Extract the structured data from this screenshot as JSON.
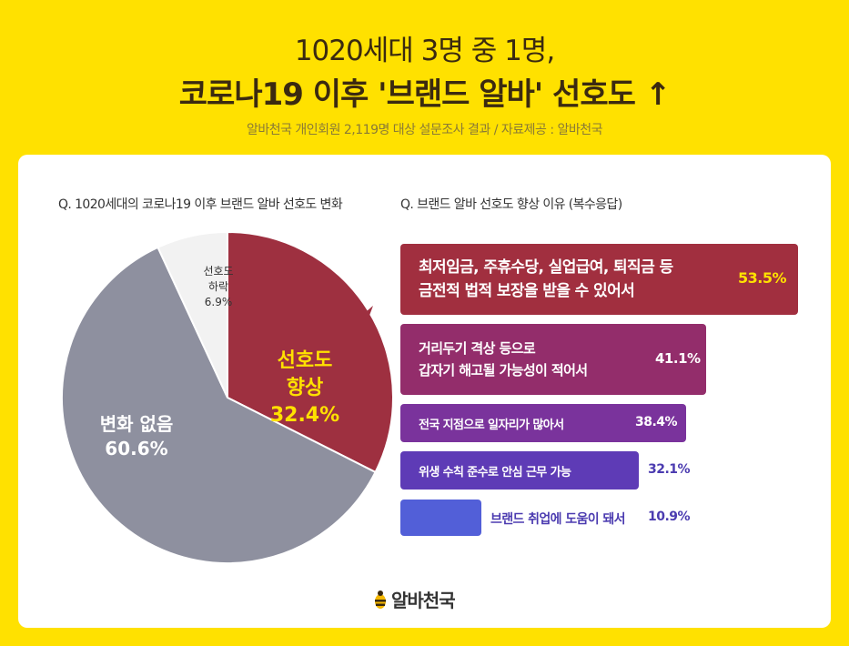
{
  "header": {
    "line1": "1020세대 3명 중 1명,",
    "line2": "코로나19 이후 '브랜드 알바' 선호도 ↑",
    "source": "알바천국 개인회원 2,119명 대상 설문조사 결과 / 자료제공 : 알바천국"
  },
  "colors": {
    "background": "#FFE100",
    "pie_no_change": "#8E909F",
    "pie_decrease": "#F2F2F2",
    "pie_increase": "#9E3040",
    "highlight_text": "#FFE100"
  },
  "chart_data": [
    {
      "type": "pie",
      "title": "Q. 1020세대의 코로나19 이후 브랜드 알바 선호도 변화",
      "slices": [
        {
          "label": "선호도 향상",
          "label_lines": [
            "선호도",
            "향상"
          ],
          "value": 32.4,
          "display": "32.4%",
          "color": "#9E3040"
        },
        {
          "label": "변화 없음",
          "label_lines": [
            "변화 없음"
          ],
          "value": 60.6,
          "display": "60.6%",
          "color": "#8E909F"
        },
        {
          "label": "선호도 하락",
          "label_lines": [
            "선호도",
            "하락"
          ],
          "value": 6.9,
          "display": "6.9%",
          "color": "#F2F2F2"
        }
      ]
    },
    {
      "type": "bar",
      "orientation": "horizontal",
      "title": "Q. 브랜드 알바 선호도 향상 이유 (복수응답)",
      "categories": [
        "최저임금, 주휴수당, 실업급여, 퇴직금 등\n금전적 법적 보장을 받을 수 있어서",
        "거리두기 격상 등으로\n갑자기 해고될 가능성이 적어서",
        "전국 지점으로 일자리가 많아서",
        "위생 수칙 준수로 안심 근무 가능",
        "브랜드 취업에 도움이 돼서"
      ],
      "values": [
        53.5,
        41.1,
        38.4,
        32.1,
        10.9
      ],
      "display": [
        "53.5%",
        "41.1%",
        "38.4%",
        "32.1%",
        "10.9%"
      ],
      "colors": [
        "#A12F3F",
        "#932D6B",
        "#7A339C",
        "#5E3BB6",
        "#525FD8"
      ],
      "value_colors": [
        "#FFE100",
        "#ffffff",
        "#ffffff",
        "#4B3BB0",
        "#4B3BB0"
      ]
    }
  ],
  "logo": {
    "icon": "bee-icon",
    "text": "알바천국"
  }
}
